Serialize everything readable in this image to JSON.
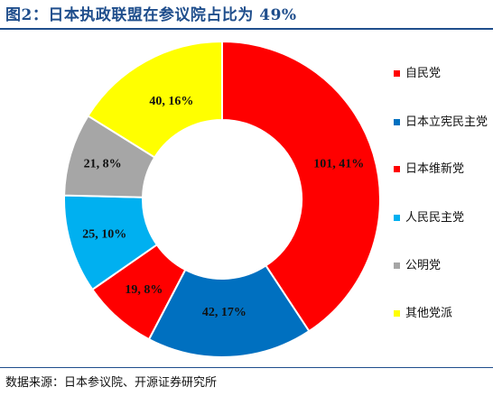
{
  "title": "图2：日本执政联盟在参议院占比为 49%",
  "source": "数据来源：日本参议院、开源证券研究所",
  "chart_data": {
    "type": "pie",
    "variant": "donut",
    "title": "图2：日本执政联盟在参议院占比为 49%",
    "legend_position": "right",
    "slices": [
      {
        "name": "自民党",
        "value": 101,
        "percent": 41,
        "label": "101, 41%",
        "color": "#ff0000"
      },
      {
        "name": "日本立宪民主党",
        "value": 42,
        "percent": 17,
        "label": "42, 17%",
        "color": "#0070c0"
      },
      {
        "name": "日本维新党",
        "value": 19,
        "percent": 8,
        "label": "19, 8%",
        "color": "#ff0000"
      },
      {
        "name": "人民民主党",
        "value": 25,
        "percent": 10,
        "label": "25, 10%",
        "color": "#00b0f0"
      },
      {
        "name": "公明党",
        "value": 21,
        "percent": 8,
        "label": "21, 8%",
        "color": "#a6a6a6"
      },
      {
        "name": "其他党派",
        "value": 40,
        "percent": 16,
        "label": "40, 16%",
        "color": "#ffff00"
      }
    ],
    "legend": [
      {
        "label": "自民党",
        "color": "#ff0000"
      },
      {
        "label": "日本立宪民主党",
        "color": "#0070c0"
      },
      {
        "label": "日本维新党",
        "color": "#ff0000"
      },
      {
        "label": "人民民主党",
        "color": "#00b0f0"
      },
      {
        "label": "公明党",
        "color": "#a6a6a6"
      },
      {
        "label": "其他党派",
        "color": "#ffff00"
      }
    ]
  }
}
